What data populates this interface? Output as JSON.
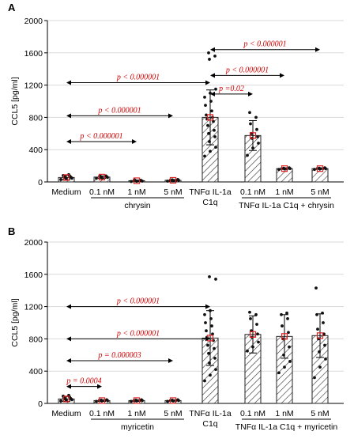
{
  "chart_data": [
    {
      "panel_label": "A",
      "type": "bar",
      "ylabel": "CCL5 [pg/ml]",
      "ylim": [
        0,
        2000
      ],
      "yticks": [
        0,
        400,
        800,
        1200,
        1600,
        2000
      ],
      "grid": true,
      "categories": [
        "Medium",
        "0.1 nM",
        "1 nM",
        "5 nM",
        "TNFα IL-1a C1q",
        "0.1 nM",
        "1 nM",
        "5 nM"
      ],
      "values": [
        55,
        60,
        15,
        20,
        800,
        575,
        165,
        165
      ],
      "error": [
        30,
        15,
        8,
        10,
        340,
        185,
        10,
        10
      ],
      "group_labels": [
        {
          "text": "chrysin",
          "from": 1,
          "to": 3
        },
        {
          "text": "TNFα IL-1a C1q + chrysin",
          "from": 5,
          "to": 7
        }
      ],
      "points": [
        [
          30,
          40,
          45,
          50,
          55,
          60,
          65,
          70,
          75,
          80,
          90
        ],
        [
          45,
          50,
          55,
          60,
          65,
          70,
          75
        ],
        [
          5,
          8,
          10,
          12,
          15,
          18,
          20,
          25
        ],
        [
          10,
          15,
          20,
          25,
          30
        ],
        [
          320,
          380,
          430,
          500,
          560,
          600,
          640,
          700,
          750,
          780,
          800,
          830,
          880,
          950,
          1000,
          1050,
          1100,
          1150,
          1520,
          1560,
          1600
        ],
        [
          330,
          420,
          480,
          540,
          560,
          600,
          650,
          720,
          800,
          860
        ],
        [
          155,
          160,
          165,
          170,
          175
        ],
        [
          155,
          160,
          165,
          170,
          175
        ]
      ],
      "annotations": [
        {
          "text": "p < 0.000001",
          "from": 4,
          "to": 7,
          "y": 1640
        },
        {
          "text": "p < 0.000001",
          "from": 4,
          "to": 6,
          "y": 1320
        },
        {
          "text": "p < 0.000001",
          "from": 0,
          "to": 4,
          "y": 1230
        },
        {
          "text": "p =0.02",
          "from": 4,
          "to": 5,
          "y": 1090
        },
        {
          "text": "p < 0.000001",
          "from": 0,
          "to": 3,
          "y": 820
        },
        {
          "text": "p < 0.000001",
          "from": 0,
          "to": 2,
          "y": 500
        }
      ]
    },
    {
      "panel_label": "B",
      "type": "bar",
      "ylabel": "CCL5 [pg/ml]",
      "ylim": [
        0,
        2000
      ],
      "yticks": [
        0,
        400,
        800,
        1200,
        1600,
        2000
      ],
      "grid": true,
      "categories": [
        "Medium",
        "0.1 nM",
        "1 nM",
        "5 nM",
        "TNFα IL-1a C1q",
        "0.1 nM",
        "1 nM",
        "5 nM"
      ],
      "values": [
        55,
        35,
        35,
        35,
        810,
        855,
        830,
        840
      ],
      "error": [
        30,
        10,
        10,
        8,
        340,
        230,
        270,
        270
      ],
      "group_labels": [
        {
          "text": "myricetin",
          "from": 1,
          "to": 3
        },
        {
          "text": "TNFα IL-1a C1q + myricetin",
          "from": 5,
          "to": 7
        }
      ],
      "points": [
        [
          30,
          40,
          45,
          50,
          55,
          60,
          65,
          70,
          80,
          90,
          100
        ],
        [
          25,
          30,
          35,
          40,
          45
        ],
        [
          25,
          30,
          35,
          40,
          45
        ],
        [
          25,
          30,
          35,
          40,
          45
        ],
        [
          280,
          350,
          420,
          500,
          560,
          620,
          680,
          720,
          780,
          820,
          860,
          900,
          960,
          1000,
          1050,
          1100,
          1150,
          1540,
          1570
        ],
        [
          650,
          700,
          760,
          820,
          860,
          900,
          980,
          1050,
          1100,
          1130
        ],
        [
          380,
          450,
          520,
          600,
          700,
          800,
          880,
          960,
          1050,
          1100,
          1120
        ],
        [
          320,
          450,
          550,
          640,
          720,
          800,
          860,
          920,
          1000,
          1100,
          1120,
          1430
        ]
      ],
      "annotations": [
        {
          "text": "p < 0.000001",
          "from": 0,
          "to": 4,
          "y": 1200
        },
        {
          "text": "p < 0.000001",
          "from": 0,
          "to": 4,
          "y": 800
        },
        {
          "text": "p = 0.000003",
          "from": 0,
          "to": 3,
          "y": 530
        },
        {
          "text": "p = 0.0004",
          "from": 0,
          "to": 1,
          "y": 210
        }
      ]
    }
  ]
}
